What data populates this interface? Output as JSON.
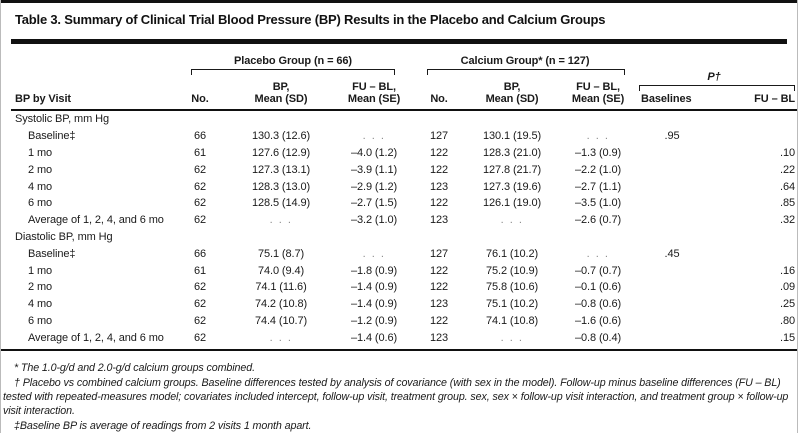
{
  "title": "Table 3. Summary of Clinical Trial Blood Pressure (BP) Results in the Placebo and Calcium Groups",
  "header": {
    "row_label": "BP by Visit",
    "placebo": {
      "label": "Placebo Group (n = 66)",
      "cols": [
        "No.",
        "BP,\nMean (SD)",
        "FU – BL,\nMean (SE)"
      ]
    },
    "calcium": {
      "label": "Calcium Group* (n = 127)",
      "cols": [
        "No.",
        "BP,\nMean (SD)",
        "FU – BL,\nMean (SE)"
      ]
    },
    "p": {
      "label": "P†",
      "cols": [
        "Baselines",
        "FU – BL"
      ]
    }
  },
  "sections": [
    {
      "label": "Systolic BP, mm Hg",
      "rows": [
        {
          "label": "Baseline‡",
          "p_no": "66",
          "p_bp": "130.3 (12.6)",
          "p_fubl": ". . .",
          "c_no": "127",
          "c_bp": "130.1 (19.5)",
          "c_fubl": ". . .",
          "p_base": ".95",
          "p_fu": ""
        },
        {
          "label": "1 mo",
          "p_no": "61",
          "p_bp": "127.6 (12.9)",
          "p_fubl": "–4.0 (1.2)",
          "c_no": "122",
          "c_bp": "128.3 (21.0)",
          "c_fubl": "–1.3 (0.9)",
          "p_base": "",
          "p_fu": ".10"
        },
        {
          "label": "2 mo",
          "p_no": "62",
          "p_bp": "127.3 (13.1)",
          "p_fubl": "–3.9 (1.1)",
          "c_no": "122",
          "c_bp": "127.8 (21.7)",
          "c_fubl": "–2.2 (1.0)",
          "p_base": "",
          "p_fu": ".22"
        },
        {
          "label": "4 mo",
          "p_no": "62",
          "p_bp": "128.3 (13.0)",
          "p_fubl": "–2.9 (1.2)",
          "c_no": "123",
          "c_bp": "127.3 (19.6)",
          "c_fubl": "–2.7 (1.1)",
          "p_base": "",
          "p_fu": ".64"
        },
        {
          "label": "6 mo",
          "p_no": "62",
          "p_bp": "128.5 (14.9)",
          "p_fubl": "–2.7 (1.5)",
          "c_no": "122",
          "c_bp": "126.1 (19.0)",
          "c_fubl": "–3.5 (1.0)",
          "p_base": "",
          "p_fu": ".85"
        },
        {
          "label": "Average of 1, 2, 4, and 6 mo",
          "p_no": "62",
          "p_bp": ". . .",
          "p_fubl": "–3.2 (1.0)",
          "c_no": "123",
          "c_bp": ". . .",
          "c_fubl": "–2.6 (0.7)",
          "p_base": "",
          "p_fu": ".32"
        }
      ]
    },
    {
      "label": "Diastolic BP, mm Hg",
      "rows": [
        {
          "label": "Baseline‡",
          "p_no": "66",
          "p_bp": "75.1 (8.7)",
          "p_fubl": ". . .",
          "c_no": "127",
          "c_bp": "76.1 (10.2)",
          "c_fubl": ". . .",
          "p_base": ".45",
          "p_fu": ""
        },
        {
          "label": "1 mo",
          "p_no": "61",
          "p_bp": "74.0 (9.4)",
          "p_fubl": "–1.8 (0.9)",
          "c_no": "122",
          "c_bp": "75.2 (10.9)",
          "c_fubl": "–0.7 (0.7)",
          "p_base": "",
          "p_fu": ".16"
        },
        {
          "label": "2 mo",
          "p_no": "62",
          "p_bp": "74.1 (11.6)",
          "p_fubl": "–1.4 (0.9)",
          "c_no": "122",
          "c_bp": "75.8 (10.6)",
          "c_fubl": "–0.1 (0.6)",
          "p_base": "",
          "p_fu": ".09"
        },
        {
          "label": "4 mo",
          "p_no": "62",
          "p_bp": "74.2 (10.8)",
          "p_fubl": "–1.4 (0.9)",
          "c_no": "123",
          "c_bp": "75.1 (10.2)",
          "c_fubl": "–0.8 (0.6)",
          "p_base": "",
          "p_fu": ".25"
        },
        {
          "label": "6 mo",
          "p_no": "62",
          "p_bp": "74.4 (10.7)",
          "p_fubl": "–1.2 (0.9)",
          "c_no": "122",
          "c_bp": "74.1 (10.8)",
          "c_fubl": "–1.6 (0.6)",
          "p_base": "",
          "p_fu": ".80"
        },
        {
          "label": "Average of 1, 2, 4, and 6 mo",
          "p_no": "62",
          "p_bp": ". . .",
          "p_fubl": "–1.4 (0.6)",
          "c_no": "123",
          "c_bp": ". . .",
          "c_fubl": "–0.8 (0.4)",
          "p_base": "",
          "p_fu": ".15"
        }
      ]
    }
  ],
  "footnotes": [
    "* The 1.0-g/d and 2.0-g/d calcium groups combined.",
    "† Placebo vs combined calcium groups. Baseline differences tested by analysis of covariance (with sex in the model). Follow-up minus baseline differences (FU – BL) tested with repeated-measures model; covariates included intercept, follow-up visit, treatment group. sex, sex × follow-up visit interaction, and treatment group × follow-up visit interaction.",
    "‡Baseline BP is average of readings from 2 visits 1 month apart."
  ]
}
